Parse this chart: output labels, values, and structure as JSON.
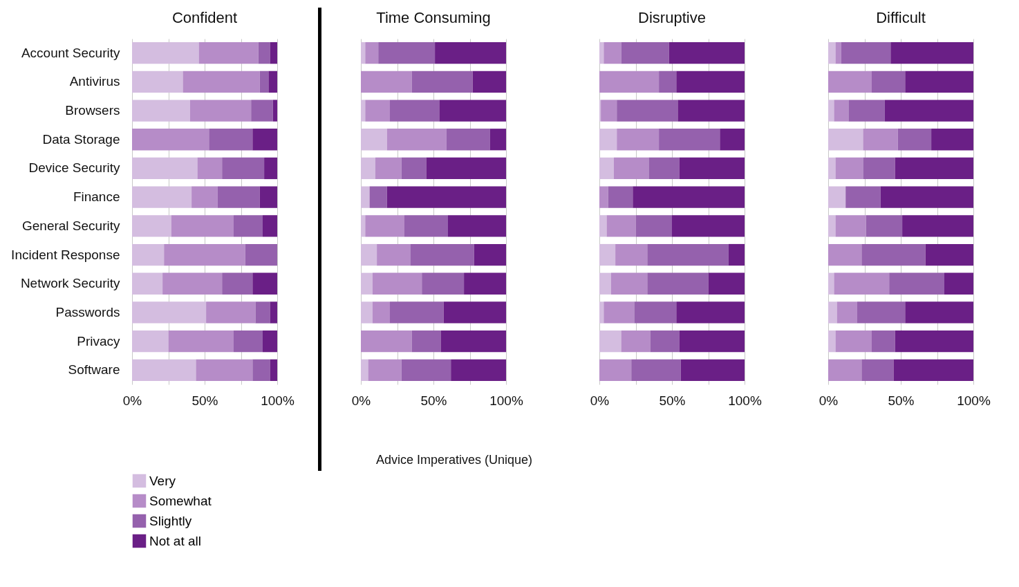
{
  "chart_data": [
    {
      "type": "bar",
      "title": "Confident",
      "legend": "bottom",
      "orientation": "horizontal",
      "stacked": true,
      "grid": "x",
      "categories": [
        "Account Security",
        "Antivirus",
        "Browsers",
        "Data Storage",
        "Device Security",
        "Finance",
        "General Security",
        "Incident Response",
        "Network Security",
        "Passwords",
        "Privacy",
        "Software"
      ],
      "xlim": [
        0,
        100
      ],
      "xticks": [
        {
          "value": 0,
          "label": "0%"
        },
        {
          "value": 25,
          "label": null
        },
        {
          "value": 50,
          "label": "50%"
        },
        {
          "value": 75,
          "label": null
        },
        {
          "value": 100,
          "label": "100%"
        }
      ],
      "series": [
        {
          "name": "Very",
          "color": "#d4bde0",
          "values": [
            46,
            35,
            40,
            0,
            45,
            41,
            27,
            22,
            21,
            51,
            25,
            44
          ]
        },
        {
          "name": "Somewhat",
          "color": "#b68cc8",
          "values": [
            41,
            53,
            42,
            53,
            17,
            18,
            43,
            56,
            41,
            34,
            45,
            39
          ]
        },
        {
          "name": "Slightly",
          "color": "#9561ad",
          "values": [
            8,
            6,
            15,
            30,
            29,
            29,
            20,
            22,
            21,
            10,
            20,
            12
          ]
        },
        {
          "name": "Not at all",
          "color": "#6a1f86",
          "values": [
            5,
            6,
            3,
            17,
            9,
            12,
            10,
            0,
            17,
            5,
            10,
            5
          ]
        }
      ]
    },
    {
      "type": "bar",
      "title": "Time Consuming",
      "orientation": "horizontal",
      "stacked": true,
      "grid": "x",
      "tick_labels": "x",
      "annotations": [
        "Advice Imperatives (Unique)"
      ],
      "categories": [
        null,
        null,
        null,
        null,
        null,
        null,
        null,
        null,
        null,
        null,
        null,
        null
      ],
      "xlim": [
        0,
        100
      ],
      "xticks": [
        {
          "value": 0,
          "label": "0%"
        },
        {
          "value": 25,
          "label": null
        },
        {
          "value": 50,
          "label": "50%"
        },
        {
          "value": 75,
          "label": null
        },
        {
          "value": 100,
          "label": "100%"
        }
      ],
      "series": [
        {
          "name": "Very",
          "color": "#d4bde0",
          "values": [
            3,
            0,
            3,
            18,
            10,
            6,
            3,
            11,
            8,
            8,
            0,
            5
          ]
        },
        {
          "name": "Somewhat",
          "color": "#b68cc8",
          "values": [
            9,
            35,
            17,
            41,
            18,
            0,
            27,
            23,
            34,
            12,
            35,
            23
          ]
        },
        {
          "name": "Slightly",
          "color": "#9561ad",
          "values": [
            39,
            42,
            34,
            30,
            17,
            12,
            30,
            44,
            29,
            37,
            20,
            34
          ]
        },
        {
          "name": "Not at all",
          "color": "#6a1f86",
          "values": [
            49,
            23,
            46,
            11,
            55,
            82,
            40,
            22,
            29,
            43,
            45,
            38
          ]
        }
      ]
    },
    {
      "type": "bar",
      "title": "Disruptive",
      "orientation": "horizontal",
      "stacked": true,
      "grid": "x",
      "tick_labels": "x",
      "categories": [
        null,
        null,
        null,
        null,
        null,
        null,
        null,
        null,
        null,
        null,
        null,
        null
      ],
      "xlim": [
        0,
        100
      ],
      "xticks": [
        {
          "value": 0,
          "label": "0%"
        },
        {
          "value": 25,
          "label": null
        },
        {
          "value": 50,
          "label": "50%"
        },
        {
          "value": 75,
          "label": null
        },
        {
          "value": 100,
          "label": "100%"
        }
      ],
      "series": [
        {
          "name": "Very",
          "color": "#d4bde0",
          "values": [
            3,
            0,
            1,
            12,
            10,
            0,
            5,
            11,
            8,
            3,
            15,
            0
          ]
        },
        {
          "name": "Somewhat",
          "color": "#b68cc8",
          "values": [
            12,
            41,
            11,
            29,
            24,
            6,
            20,
            22,
            25,
            21,
            20,
            22
          ]
        },
        {
          "name": "Slightly",
          "color": "#9561ad",
          "values": [
            33,
            12,
            42,
            42,
            21,
            17,
            25,
            56,
            42,
            29,
            20,
            34
          ]
        },
        {
          "name": "Not at all",
          "color": "#6a1f86",
          "values": [
            52,
            47,
            46,
            17,
            45,
            77,
            50,
            11,
            25,
            47,
            45,
            44
          ]
        }
      ]
    },
    {
      "type": "bar",
      "title": "Difficult",
      "orientation": "horizontal",
      "stacked": true,
      "grid": "x",
      "tick_labels": "x",
      "categories": [
        null,
        null,
        null,
        null,
        null,
        null,
        null,
        null,
        null,
        null,
        null,
        null
      ],
      "xlim": [
        0,
        100
      ],
      "xticks": [
        {
          "value": 0,
          "label": "0%"
        },
        {
          "value": 25,
          "label": null
        },
        {
          "value": 50,
          "label": "50%"
        },
        {
          "value": 75,
          "label": null
        },
        {
          "value": 100,
          "label": "100%"
        }
      ],
      "series": [
        {
          "name": "Very",
          "color": "#d4bde0",
          "values": [
            5,
            0,
            4,
            24,
            5,
            12,
            5,
            0,
            4,
            6,
            5,
            0
          ]
        },
        {
          "name": "Somewhat",
          "color": "#b68cc8",
          "values": [
            4,
            30,
            10,
            24,
            19,
            0,
            21,
            23,
            38,
            14,
            25,
            23
          ]
        },
        {
          "name": "Slightly",
          "color": "#9561ad",
          "values": [
            34,
            23,
            25,
            23,
            22,
            24,
            25,
            44,
            38,
            33,
            16,
            22
          ]
        },
        {
          "name": "Not at all",
          "color": "#6a1f86",
          "values": [
            57,
            47,
            61,
            29,
            54,
            64,
            49,
            33,
            20,
            47,
            54,
            55
          ]
        }
      ]
    }
  ]
}
